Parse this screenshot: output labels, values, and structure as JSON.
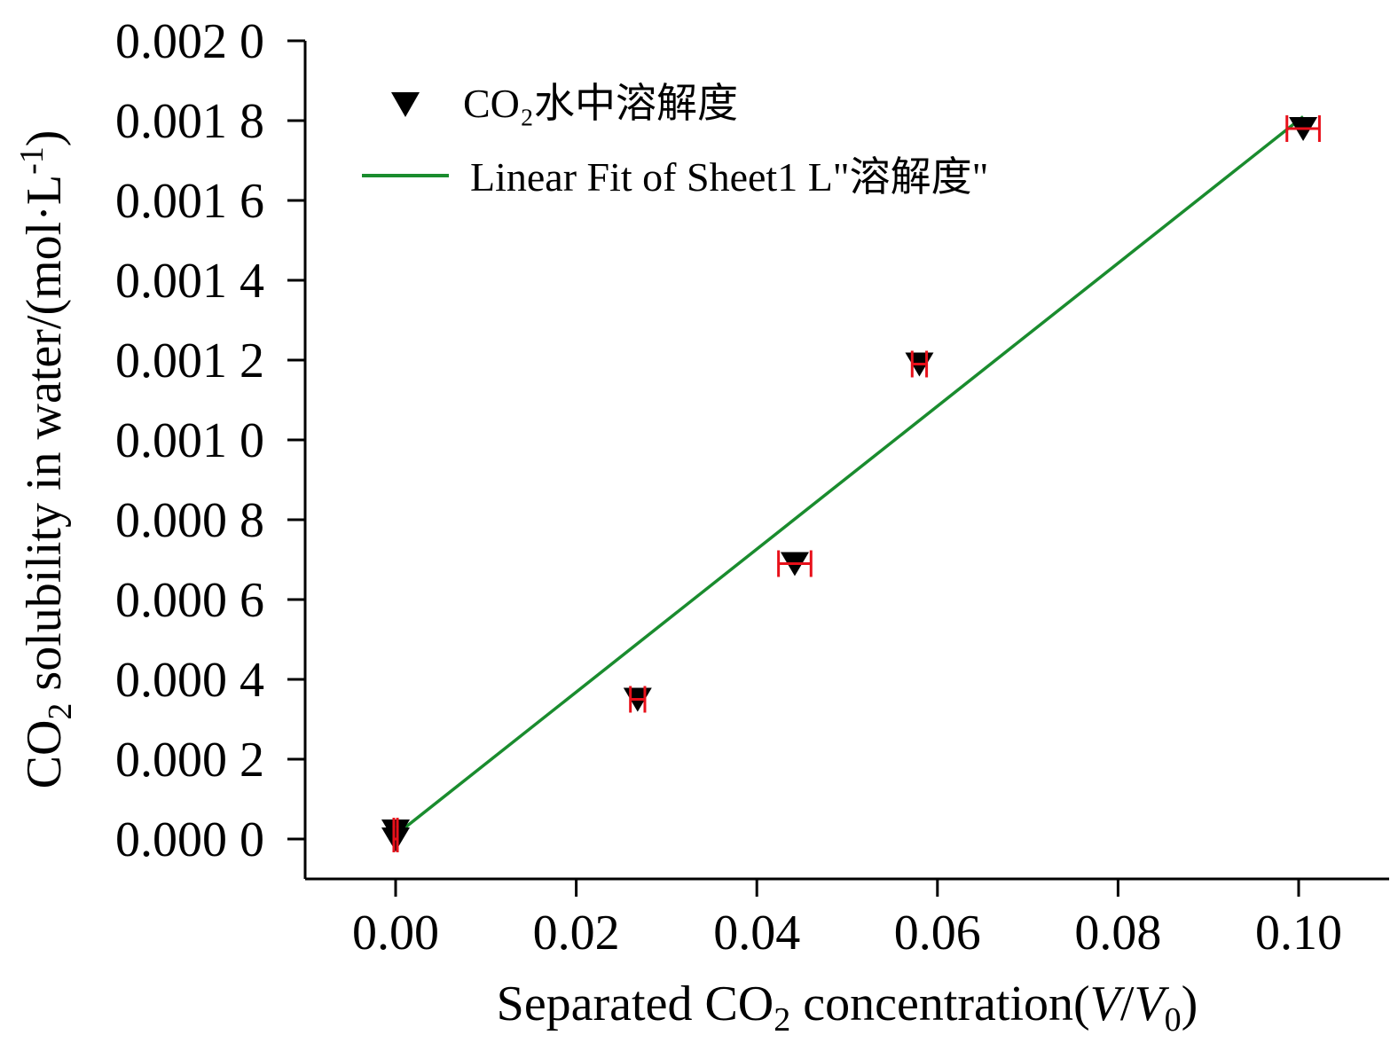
{
  "chart_data": {
    "type": "scatter",
    "xlabel": {
      "prefix": "Separated CO",
      "sub": "2",
      "middle": " concentration(",
      "italic1": "V",
      "slash": "/",
      "italic2": "V",
      "sub2": "0",
      "suffix": ")"
    },
    "ylabel": {
      "prefix": "CO",
      "sub": "2",
      "middle": " solubility in water/(mol·L",
      "sup": "-1",
      "suffix": ")"
    },
    "xlim": [
      -0.01,
      0.11
    ],
    "ylim": [
      -0.0001,
      0.0021
    ],
    "x_ticks": [
      0.0,
      0.02,
      0.04,
      0.06,
      0.08,
      0.1
    ],
    "x_tick_labels": [
      "0.00",
      "0.02",
      "0.04",
      "0.06",
      "0.08",
      "0.10"
    ],
    "y_ticks": [
      0.0,
      0.0002,
      0.0004,
      0.0006,
      0.0008,
      0.001,
      0.0012,
      0.0014,
      0.0016,
      0.0018,
      0.002
    ],
    "y_tick_labels": [
      "0.000 0",
      "0.000 2",
      "0.000 4",
      "0.000 6",
      "0.000 8",
      "0.001 0",
      "0.001 2",
      "0.001 4",
      "0.001 6",
      "0.001 8",
      "0.002 0"
    ],
    "grid": false,
    "legend_position": "top-left",
    "series": [
      {
        "name": "CO₂水中溶解度",
        "marker": "triangle-down",
        "color": "#000000",
        "error_color": "#e8101a",
        "points": [
          {
            "x": 0.0,
            "y": 2e-05,
            "xerr": 0.0002
          },
          {
            "x": 0.0,
            "y": 0.0,
            "xerr": 0.0002
          },
          {
            "x": 0.0268,
            "y": 0.00035,
            "xerr": 0.0008
          },
          {
            "x": 0.0442,
            "y": 0.00069,
            "xerr": 0.0018
          },
          {
            "x": 0.058,
            "y": 0.00119,
            "xerr": 0.0008
          },
          {
            "x": 0.1005,
            "y": 0.00178,
            "xerr": 0.0018
          }
        ]
      }
    ],
    "fit": {
      "name": "Linear Fit of Sheet1 L\"溶解度\"",
      "color": "#1a8c2e",
      "x": [
        0.0,
        0.1005
      ],
      "y": [
        1e-05,
        0.00181
      ]
    }
  }
}
